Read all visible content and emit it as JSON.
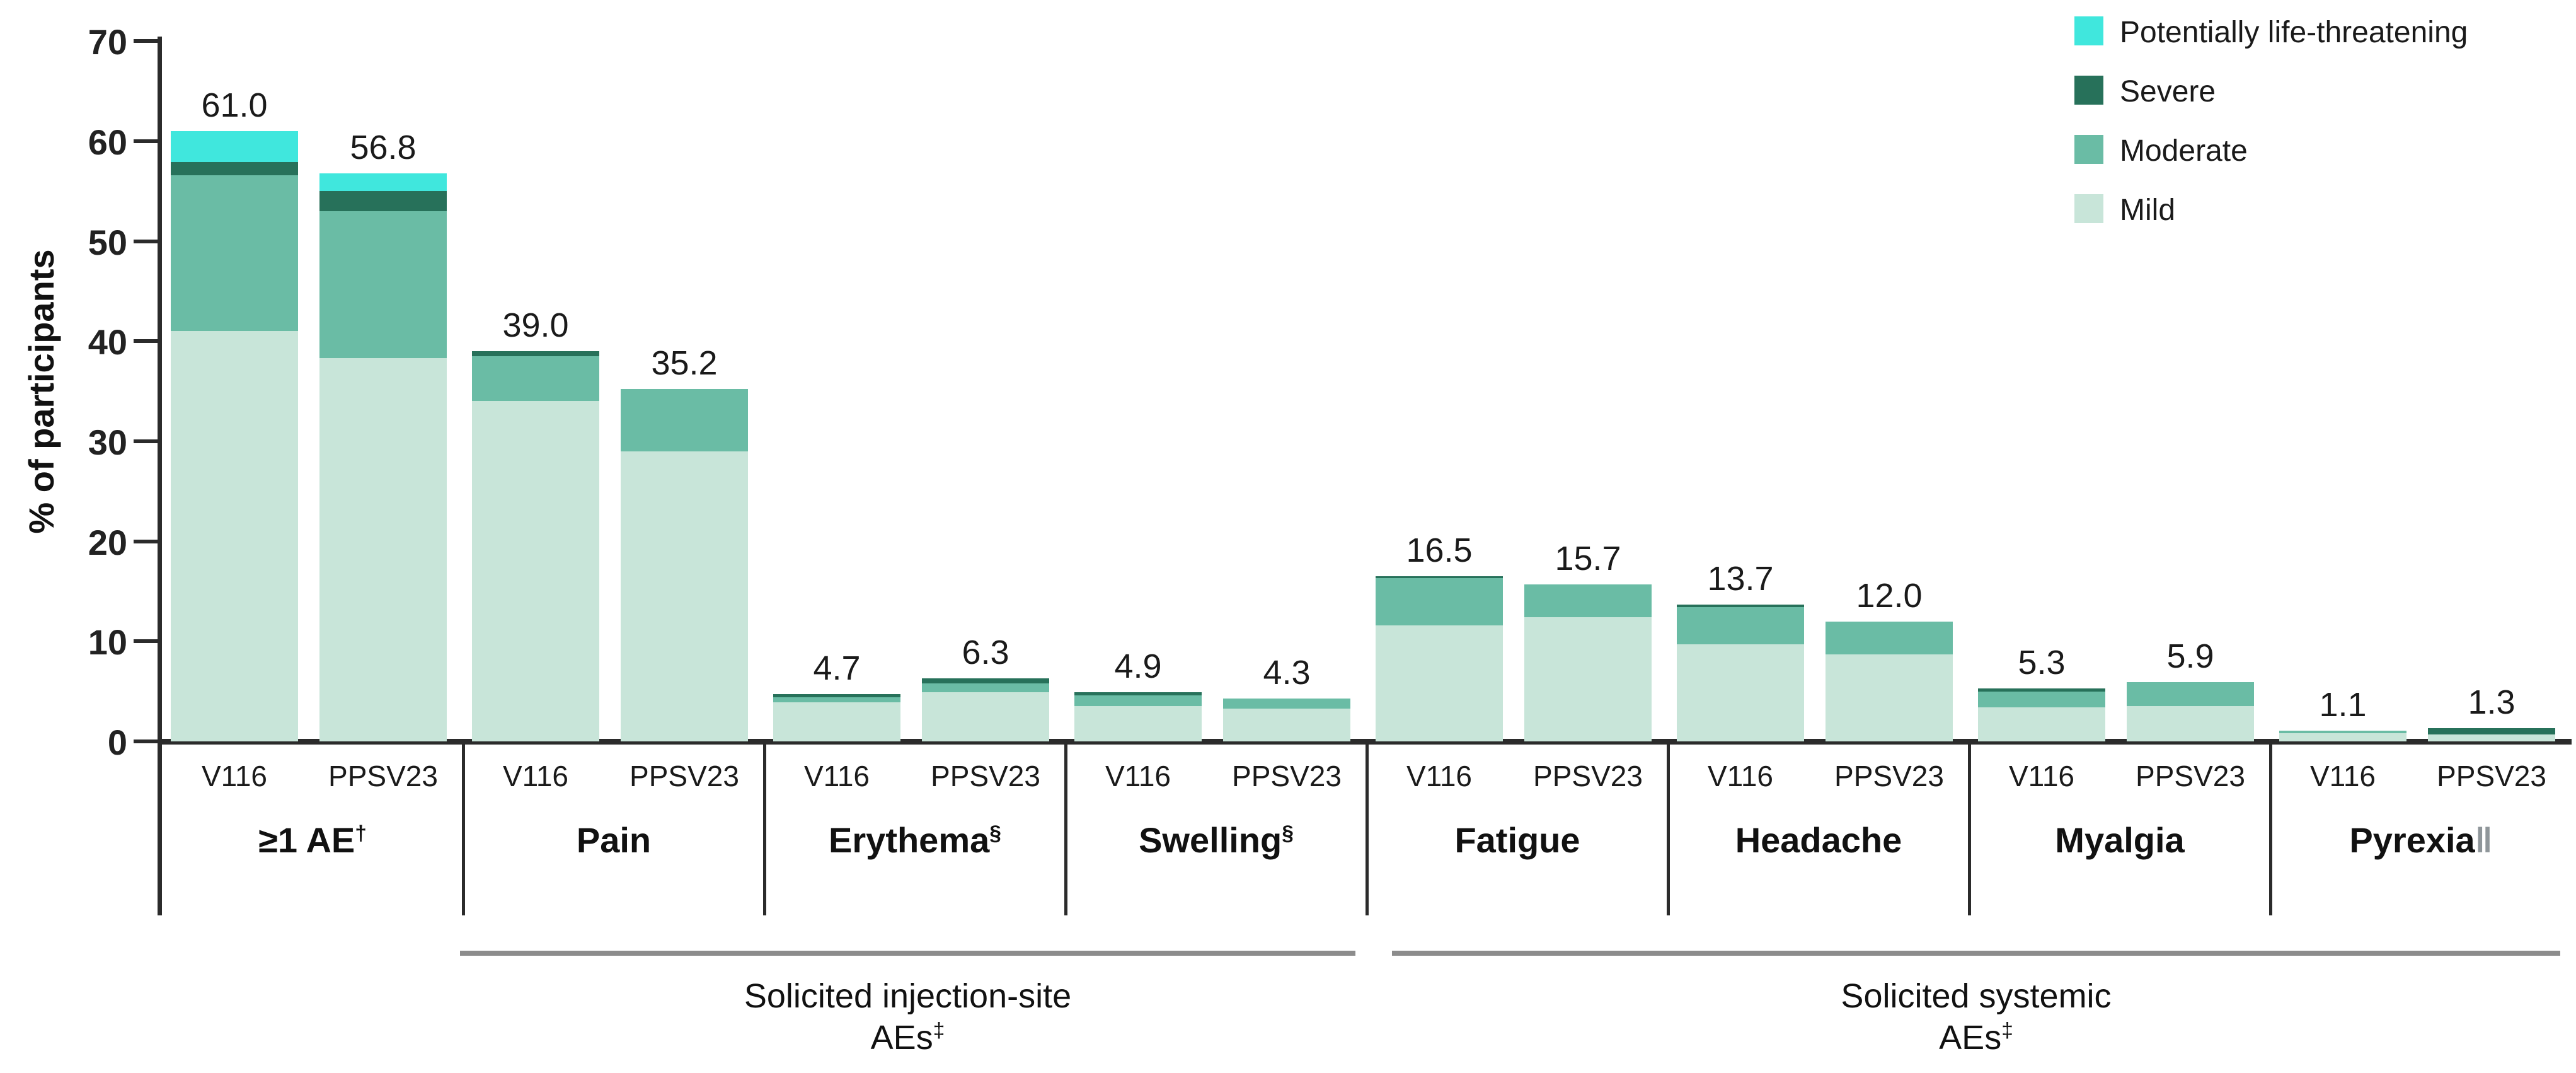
{
  "chart_data": {
    "type": "bar",
    "stacked": true,
    "title": "",
    "ylabel": "% of participants",
    "ylim": [
      0,
      70
    ],
    "yticks": [
      0,
      10,
      20,
      30,
      40,
      50,
      60,
      70
    ],
    "grid": false,
    "legend_position": "top-right",
    "arms": [
      "V116",
      "PPSV23"
    ],
    "severity_order_bottom_to_top": [
      "mild",
      "moderate",
      "severe",
      "plt"
    ],
    "colors": {
      "mild": "#c8e5d9",
      "moderate": "#6abca5",
      "severe": "#27715a",
      "plt": "#40e7dd",
      "axis": "#2b2b2b",
      "bracket_line": "#8c8c8c"
    },
    "groups": [
      {
        "category": "≥1 AE",
        "marker": "†",
        "bars": [
          {
            "arm": "V116",
            "total_label": "61.0",
            "total": 61.0,
            "segments": {
              "mild": 41.0,
              "moderate": 15.6,
              "severe": 1.3,
              "plt": 3.1
            }
          },
          {
            "arm": "PPSV23",
            "total_label": "56.8",
            "total": 56.8,
            "segments": {
              "mild": 38.3,
              "moderate": 14.7,
              "severe": 2.0,
              "plt": 1.8
            }
          }
        ]
      },
      {
        "category": "Pain",
        "marker": "",
        "bars": [
          {
            "arm": "V116",
            "total_label": "39.0",
            "total": 39.0,
            "segments": {
              "mild": 34.0,
              "moderate": 4.5,
              "severe": 0.5,
              "plt": 0
            }
          },
          {
            "arm": "PPSV23",
            "total_label": "35.2",
            "total": 35.2,
            "segments": {
              "mild": 29.0,
              "moderate": 6.2,
              "severe": 0,
              "plt": 0
            }
          }
        ]
      },
      {
        "category": "Erythema",
        "marker": "§",
        "bars": [
          {
            "arm": "V116",
            "total_label": "4.7",
            "total": 4.7,
            "segments": {
              "mild": 3.9,
              "moderate": 0.5,
              "severe": 0.3,
              "plt": 0
            }
          },
          {
            "arm": "PPSV23",
            "total_label": "6.3",
            "total": 6.3,
            "segments": {
              "mild": 4.9,
              "moderate": 0.9,
              "severe": 0.5,
              "plt": 0
            }
          }
        ]
      },
      {
        "category": "Swelling",
        "marker": "§",
        "bars": [
          {
            "arm": "V116",
            "total_label": "4.9",
            "total": 4.9,
            "segments": {
              "mild": 3.5,
              "moderate": 1.1,
              "severe": 0.3,
              "plt": 0
            }
          },
          {
            "arm": "PPSV23",
            "total_label": "4.3",
            "total": 4.3,
            "segments": {
              "mild": 3.3,
              "moderate": 1.0,
              "severe": 0,
              "plt": 0
            }
          }
        ]
      },
      {
        "category": "Fatigue",
        "marker": "",
        "bars": [
          {
            "arm": "V116",
            "total_label": "16.5",
            "total": 16.5,
            "segments": {
              "mild": 11.6,
              "moderate": 4.7,
              "severe": 0.2,
              "plt": 0
            }
          },
          {
            "arm": "PPSV23",
            "total_label": "15.7",
            "total": 15.7,
            "segments": {
              "mild": 12.4,
              "moderate": 3.3,
              "severe": 0,
              "plt": 0
            }
          }
        ]
      },
      {
        "category": "Headache",
        "marker": "",
        "bars": [
          {
            "arm": "V116",
            "total_label": "13.7",
            "total": 13.7,
            "segments": {
              "mild": 9.7,
              "moderate": 3.7,
              "severe": 0.3,
              "plt": 0
            }
          },
          {
            "arm": "PPSV23",
            "total_label": "12.0",
            "total": 12.0,
            "segments": {
              "mild": 8.7,
              "moderate": 3.3,
              "severe": 0,
              "plt": 0
            }
          }
        ]
      },
      {
        "category": "Myalgia",
        "marker": "",
        "bars": [
          {
            "arm": "V116",
            "total_label": "5.3",
            "total": 5.3,
            "segments": {
              "mild": 3.4,
              "moderate": 1.6,
              "severe": 0.3,
              "plt": 0
            }
          },
          {
            "arm": "PPSV23",
            "total_label": "5.9",
            "total": 5.9,
            "segments": {
              "mild": 3.5,
              "moderate": 2.4,
              "severe": 0,
              "plt": 0
            }
          }
        ]
      },
      {
        "category": "Pyrexia",
        "marker": "‖",
        "bars": [
          {
            "arm": "V116",
            "total_label": "1.1",
            "total": 1.1,
            "segments": {
              "mild": 0.8,
              "moderate": 0.3,
              "severe": 0,
              "plt": 0
            }
          },
          {
            "arm": "PPSV23",
            "total_label": "1.3",
            "total": 1.3,
            "segments": {
              "mild": 0.7,
              "moderate": 0,
              "severe": 0.6,
              "plt": 0
            }
          }
        ]
      }
    ],
    "brackets": [
      {
        "line1": "Solicited injection-site",
        "line2": "AEs",
        "marker": "‡",
        "from_group": 1,
        "to_group": 3
      },
      {
        "line1": "Solicited systemic",
        "line2": "AEs",
        "marker": "‡",
        "from_group": 4,
        "to_group": 7
      }
    ]
  },
  "legend": {
    "entries": [
      {
        "label": "Potentially life-threatening",
        "key": "plt",
        "color": "#40e7dd"
      },
      {
        "label": "Severe",
        "key": "severe",
        "color": "#27715a"
      },
      {
        "label": "Moderate",
        "key": "moderate",
        "color": "#6abca5"
      },
      {
        "label": "Mild",
        "key": "mild",
        "color": "#c8e5d9"
      }
    ]
  }
}
